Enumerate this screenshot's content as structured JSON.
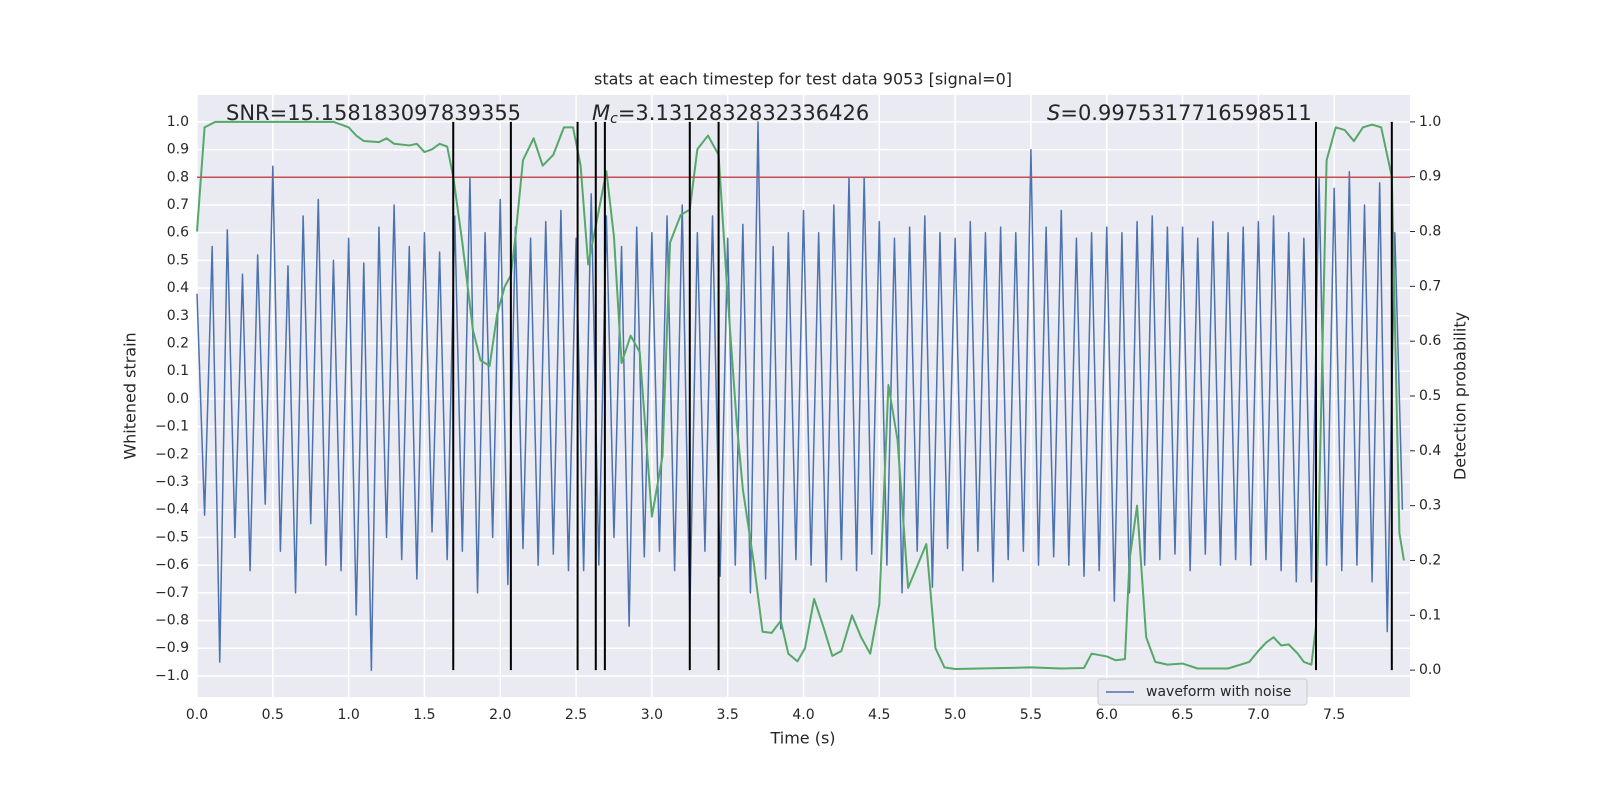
{
  "chart_data": {
    "type": "line",
    "title": "stats at each timestep for test data 9053 [signal=0]",
    "xlabel": "Time (s)",
    "ylabel": "Whitened strain",
    "y2label": "Detection probability",
    "annotations": [
      {
        "text": "SNR=15.158183097839355"
      },
      {
        "symbol": "M",
        "subscript": "c",
        "text": "=3.1312832832336426"
      },
      {
        "symbol": "S",
        "text": "=0.9975317716598511"
      }
    ],
    "xlim": [
      0,
      8.0
    ],
    "ylim": [
      -1.076,
      1.097
    ],
    "y2lim": [
      -0.049,
      1.049
    ],
    "xticks": [
      {
        "value": 0,
        "label": "0.0"
      },
      0.5,
      {
        "value": 1,
        "label": "1.0"
      },
      1.5,
      {
        "value": 2,
        "label": "2.0"
      },
      2.5,
      {
        "value": 3,
        "label": "3.0"
      },
      3.5,
      {
        "value": 4,
        "label": "4.0"
      },
      4.5,
      {
        "value": 5,
        "label": "5.0"
      },
      5.5,
      {
        "value": 6,
        "label": "6.0"
      },
      6.5,
      {
        "value": 7,
        "label": "7.0"
      },
      7.5
    ],
    "yticks": [
      {
        "value": -1,
        "label": "−1.0"
      },
      {
        "value": -0.9,
        "label": "−0.9"
      },
      {
        "value": -0.8,
        "label": "−0.8"
      },
      {
        "value": -0.7,
        "label": "−0.7"
      },
      {
        "value": -0.6,
        "label": "−0.6"
      },
      {
        "value": -0.5,
        "label": "−0.5"
      },
      {
        "value": -0.4,
        "label": "−0.4"
      },
      {
        "value": -0.3,
        "label": "−0.3"
      },
      {
        "value": -0.2,
        "label": "−0.2"
      },
      {
        "value": -0.1,
        "label": "−0.1"
      },
      {
        "value": 0,
        "label": "0.0"
      },
      0.1,
      0.2,
      0.3,
      0.4,
      0.5,
      0.6,
      0.7,
      0.8,
      0.9,
      {
        "value": 1,
        "label": "1.0"
      }
    ],
    "y2ticks": [
      {
        "value": 0,
        "label": "0.0"
      },
      0.1,
      0.2,
      0.3,
      0.4,
      0.5,
      0.6,
      0.7,
      0.8,
      0.9,
      {
        "value": 1,
        "label": "1.0"
      }
    ],
    "grid": true,
    "legend": "lower right",
    "threshold": 0.8,
    "threshold_color": "#c44e52",
    "detections": [
      1.69,
      2.07,
      2.51,
      2.63,
      2.69,
      3.25,
      3.44,
      7.38,
      7.88
    ],
    "detection_color": "#000000",
    "series": [
      {
        "name": "waveform with noise",
        "color": "#4c72b0",
        "x": [
          0,
          0.05,
          0.1,
          0.15,
          0.2,
          0.25,
          0.3,
          0.35,
          0.4,
          0.45,
          0.5,
          0.55,
          0.6,
          0.65,
          0.7,
          0.75,
          0.8,
          0.85,
          0.9,
          0.95,
          1,
          1.05,
          1.1,
          1.15,
          1.2,
          1.25,
          1.3,
          1.35,
          1.4,
          1.45,
          1.5,
          1.55,
          1.6,
          1.65,
          1.7,
          1.75,
          1.8,
          1.85,
          1.9,
          1.95,
          2,
          2.05,
          2.1,
          2.15,
          2.2,
          2.25,
          2.3,
          2.35,
          2.4,
          2.45,
          2.5,
          2.55,
          2.6,
          2.65,
          2.7,
          2.75,
          2.8,
          2.85,
          2.9,
          2.95,
          3,
          3.05,
          3.1,
          3.15,
          3.2,
          3.25,
          3.3,
          3.35,
          3.4,
          3.45,
          3.5,
          3.55,
          3.6,
          3.65,
          3.7,
          3.75,
          3.8,
          3.85,
          3.9,
          3.95,
          4,
          4.05,
          4.1,
          4.15,
          4.2,
          4.25,
          4.3,
          4.35,
          4.4,
          4.45,
          4.5,
          4.55,
          4.6,
          4.65,
          4.7,
          4.75,
          4.8,
          4.85,
          4.9,
          4.95,
          5,
          5.05,
          5.1,
          5.15,
          5.2,
          5.25,
          5.3,
          5.35,
          5.4,
          5.45,
          5.5,
          5.55,
          5.6,
          5.65,
          5.7,
          5.75,
          5.8,
          5.85,
          5.9,
          5.95,
          6,
          6.05,
          6.1,
          6.15,
          6.2,
          6.25,
          6.3,
          6.35,
          6.4,
          6.45,
          6.5,
          6.55,
          6.6,
          6.65,
          6.7,
          6.75,
          6.8,
          6.85,
          6.9,
          6.95,
          7,
          7.05,
          7.1,
          7.15,
          7.2,
          7.25,
          7.3,
          7.35,
          7.4,
          7.45,
          7.5,
          7.55,
          7.6,
          7.65,
          7.7,
          7.75,
          7.8,
          7.85,
          7.9,
          7.95
        ],
        "values": [
          0.38,
          -0.42,
          0.55,
          -0.95,
          0.61,
          -0.5,
          0.45,
          -0.62,
          0.52,
          -0.38,
          0.84,
          -0.55,
          0.48,
          -0.7,
          0.66,
          -0.45,
          0.72,
          -0.6,
          0.5,
          -0.62,
          0.58,
          -0.78,
          0.49,
          -0.98,
          0.62,
          -0.5,
          0.7,
          -0.58,
          0.55,
          -0.65,
          0.6,
          -0.48,
          0.53,
          -0.58,
          0.66,
          -0.55,
          0.8,
          -0.7,
          0.6,
          -0.5,
          0.72,
          -0.67,
          0.62,
          -0.54,
          0.58,
          -0.6,
          0.64,
          -0.56,
          0.68,
          -0.62,
          0.58,
          -0.62,
          0.74,
          -0.6,
          0.66,
          -0.5,
          0.55,
          -0.82,
          0.62,
          -0.57,
          0.6,
          -0.55,
          0.66,
          -0.62,
          0.7,
          -0.78,
          0.6,
          -0.55,
          0.66,
          -0.64,
          0.58,
          -0.6,
          0.63,
          -0.7,
          1.0,
          -0.65,
          0.55,
          -0.83,
          0.6,
          -0.58,
          0.68,
          -0.6,
          0.6,
          -0.66,
          0.7,
          -0.58,
          0.8,
          -0.62,
          0.8,
          -0.56,
          0.64,
          -0.6,
          0.58,
          -0.7,
          0.62,
          -0.55,
          0.66,
          -0.68,
          0.6,
          -0.54,
          0.58,
          -0.62,
          0.64,
          -0.55,
          0.6,
          -0.66,
          0.62,
          -0.58,
          0.6,
          -0.55,
          0.9,
          -0.6,
          0.62,
          -0.57,
          0.68,
          -0.6,
          0.58,
          -0.64,
          0.6,
          -0.62,
          0.62,
          -0.73,
          0.6,
          -0.7,
          0.64,
          -0.6,
          0.66,
          -0.58,
          0.62,
          -0.56,
          0.62,
          -0.62,
          0.58,
          -0.56,
          0.64,
          -0.6,
          0.6,
          -0.58,
          0.62,
          -0.6,
          0.64,
          -0.58,
          0.66,
          -0.62,
          0.6,
          -0.66,
          0.58,
          -0.66,
          0.8,
          -0.6,
          0.76,
          -0.62,
          0.82,
          -0.6,
          0.7,
          -0.66,
          0.78,
          -0.84,
          0.6,
          -0.4
        ]
      },
      {
        "color": "#55a868",
        "axis": "y2",
        "x": [
          0,
          0.05,
          0.12,
          0.3,
          0.5,
          0.7,
          0.9,
          0.95,
          1,
          1.05,
          1.1,
          1.2,
          1.25,
          1.3,
          1.4,
          1.45,
          1.5,
          1.55,
          1.6,
          1.65,
          1.69,
          1.75,
          1.82,
          1.87,
          1.93,
          1.98,
          2.03,
          2.07,
          2.1,
          2.15,
          2.22,
          2.28,
          2.35,
          2.42,
          2.48,
          2.53,
          2.58,
          2.63,
          2.7,
          2.75,
          2.8,
          2.86,
          2.92,
          3,
          3.07,
          3.12,
          3.19,
          3.25,
          3.3,
          3.37,
          3.44,
          3.5,
          3.56,
          3.6,
          3.67,
          3.73,
          3.79,
          3.85,
          3.9,
          3.96,
          4.01,
          4.07,
          4.13,
          4.19,
          4.25,
          4.32,
          4.38,
          4.44,
          4.5,
          4.56,
          4.62,
          4.69,
          4.75,
          4.81,
          4.87,
          4.93,
          5,
          5.5,
          5.7,
          5.85,
          5.9,
          6,
          6.06,
          6.12,
          6.15,
          6.2,
          6.26,
          6.32,
          6.4,
          6.5,
          6.6,
          6.8,
          6.94,
          7,
          7.05,
          7.1,
          7.15,
          7.2,
          7.26,
          7.3,
          7.35,
          7.38,
          7.4,
          7.45,
          7.51,
          7.57,
          7.63,
          7.69,
          7.75,
          7.81,
          7.88,
          7.93,
          7.96
        ],
        "values": [
          0.8,
          0.99,
          1.0,
          1.0,
          1.0,
          1.0,
          1.0,
          0.995,
          0.99,
          0.975,
          0.965,
          0.963,
          0.97,
          0.96,
          0.957,
          0.96,
          0.945,
          0.95,
          0.96,
          0.955,
          0.9,
          0.78,
          0.62,
          0.565,
          0.555,
          0.65,
          0.7,
          0.72,
          0.79,
          0.93,
          0.97,
          0.92,
          0.94,
          0.99,
          0.99,
          0.92,
          0.74,
          0.81,
          0.91,
          0.79,
          0.56,
          0.61,
          0.58,
          0.28,
          0.39,
          0.78,
          0.83,
          0.84,
          0.95,
          0.975,
          0.94,
          0.68,
          0.45,
          0.33,
          0.2,
          0.07,
          0.068,
          0.09,
          0.03,
          0.016,
          0.04,
          0.13,
          0.08,
          0.026,
          0.035,
          0.1,
          0.06,
          0.03,
          0.12,
          0.52,
          0.42,
          0.15,
          0.19,
          0.23,
          0.04,
          0.005,
          0.002,
          0.005,
          0.003,
          0.004,
          0.03,
          0.025,
          0.018,
          0.02,
          0.2,
          0.3,
          0.06,
          0.015,
          0.01,
          0.012,
          0.003,
          0.003,
          0.015,
          0.035,
          0.05,
          0.06,
          0.045,
          0.047,
          0.03,
          0.015,
          0.01,
          0.08,
          0.3,
          0.93,
          0.99,
          0.985,
          0.965,
          0.99,
          0.995,
          0.99,
          0.9,
          0.25,
          0.2
        ]
      }
    ]
  }
}
